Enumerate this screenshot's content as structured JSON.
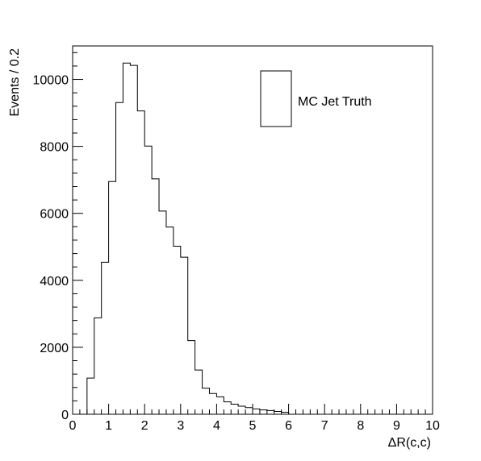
{
  "chart_data": {
    "type": "histogram",
    "title": "",
    "xlabel": "ΔR(c,c)",
    "ylabel": "Events / 0.2",
    "xlim": [
      0,
      10
    ],
    "ylim": [
      0,
      11000
    ],
    "bin_width": 0.2,
    "x_ticks": [
      "0",
      "1",
      "2",
      "3",
      "4",
      "5",
      "6",
      "7",
      "8",
      "9",
      "10"
    ],
    "y_ticks": [
      "0",
      "2000",
      "4000",
      "6000",
      "8000",
      "10000"
    ],
    "grid": false,
    "legend": {
      "position": "top-right",
      "entries": [
        "MC Jet Truth"
      ]
    },
    "series": [
      {
        "name": "MC Jet Truth",
        "bin_edges_start": 0,
        "values": [
          0,
          0,
          1080,
          2880,
          4540,
          6950,
          9310,
          10490,
          10420,
          9060,
          8010,
          7030,
          6070,
          5590,
          5020,
          4690,
          2200,
          1320,
          780,
          620,
          520,
          370,
          300,
          240,
          200,
          160,
          130,
          110,
          85,
          60,
          0,
          0,
          0,
          0,
          0,
          0,
          0,
          0,
          0,
          0,
          0,
          0,
          0,
          0,
          0,
          0,
          0,
          0,
          0,
          0
        ]
      }
    ]
  }
}
